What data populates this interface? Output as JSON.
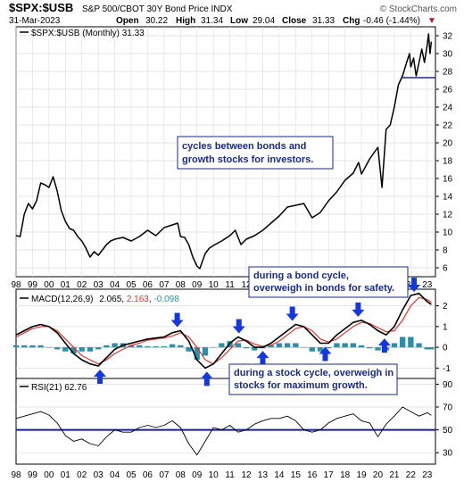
{
  "header": {
    "symbol": "$SPX:$USB",
    "name": "S&P 500/CBOT 30Y Bond Price INDX",
    "watermark": "© StockCharts.com",
    "date": "31-Mar-2023",
    "ohlc": {
      "open_label": "Open",
      "open": "30.22",
      "high_label": "High",
      "high": "31.34",
      "low_label": "Low",
      "low": "29.04",
      "close_label": "Close",
      "close": "31.33",
      "chg_label": "Chg",
      "chg": "-0.46 (-1.44%)",
      "chg_arrow": "▼"
    }
  },
  "colors": {
    "price": "#000000",
    "macd": "#000000",
    "signal": "#e8312a",
    "histogram": "#2a8fa8",
    "arrow": "#1437e0",
    "rsi": "#000000",
    "rsi_mid": "#1a1aa8",
    "ref_line": "#1a2a8c",
    "annotation_border": "#1a2a8c",
    "annotation_text": "#1a2a8c",
    "grid": "#dddddd"
  },
  "chart_data": [
    {
      "type": "line",
      "panel": "price",
      "legend": "$SPX:$USB (Monthly) 31.33",
      "y_ticks": [
        6,
        8,
        10,
        12,
        14,
        16,
        18,
        20,
        22,
        24,
        26,
        28,
        30,
        32
      ],
      "ylim": [
        5,
        33
      ],
      "x_tick_labels": [
        "98",
        "99",
        "00",
        "01",
        "02",
        "03",
        "04",
        "05",
        "06",
        "07",
        "08",
        "09",
        "10",
        "11",
        "12",
        "13",
        "14",
        "15",
        "16",
        "17",
        "18",
        "19",
        "20",
        "21",
        "22",
        "23"
      ],
      "xlim": [
        1998.0,
        2023.5
      ],
      "reference_line": 27.3,
      "series": [
        {
          "x": [
            1998.0,
            1998.25,
            1998.5,
            1998.75,
            1999.0,
            1999.25,
            1999.5,
            1999.75,
            2000.0,
            2000.25,
            2000.5,
            2000.75,
            2001.0,
            2001.25,
            2001.5,
            2001.75,
            2002.0,
            2002.25,
            2002.5,
            2002.75,
            2003.0,
            2003.25,
            2003.5,
            2003.75,
            2004.0,
            2004.5,
            2005.0,
            2005.5,
            2006.0,
            2006.5,
            2007.0,
            2007.5,
            2007.83,
            2008.0,
            2008.25,
            2008.5,
            2008.75,
            2009.0,
            2009.17,
            2009.5,
            2009.75,
            2010.0,
            2010.5,
            2011.0,
            2011.33,
            2011.67,
            2012.0,
            2012.5,
            2013.0,
            2013.5,
            2014.0,
            2014.5,
            2015.0,
            2015.5,
            2016.0,
            2016.5,
            2017.0,
            2017.5,
            2018.0,
            2018.5,
            2018.83,
            2019.0,
            2019.5,
            2020.0,
            2020.25,
            2020.5,
            2020.75,
            2021.0,
            2021.25,
            2021.5,
            2021.75,
            2021.92,
            2022.0,
            2022.17,
            2022.33,
            2022.5,
            2022.67,
            2022.83,
            2023.0,
            2023.08,
            2023.17,
            2023.25
          ],
          "values": [
            9.6,
            9.5,
            12.0,
            13.2,
            12.6,
            13.5,
            15.5,
            15.3,
            15.0,
            16.2,
            14.6,
            12.4,
            11.2,
            10.4,
            10.2,
            9.5,
            9.0,
            8.2,
            7.2,
            7.8,
            7.4,
            8.0,
            8.6,
            9.0,
            9.2,
            9.4,
            9.0,
            9.5,
            10.2,
            9.6,
            10.5,
            10.8,
            11.0,
            9.5,
            9.4,
            8.6,
            7.2,
            6.2,
            5.9,
            7.6,
            8.2,
            8.5,
            9.0,
            9.6,
            10.2,
            8.6,
            9.2,
            9.6,
            10.2,
            11.0,
            11.8,
            12.8,
            13.0,
            13.2,
            11.6,
            12.2,
            13.5,
            14.5,
            15.8,
            16.6,
            17.8,
            16.5,
            18.2,
            19.5,
            15.0,
            21.5,
            22.0,
            24.0,
            26.5,
            27.5,
            29.0,
            30.0,
            28.5,
            29.5,
            27.5,
            29.0,
            30.5,
            29.0,
            31.0,
            32.2,
            30.0,
            31.33
          ]
        }
      ]
    },
    {
      "type": "line",
      "panel": "macd",
      "legend_prefix": "MACD(12,26,9)",
      "legend_macd": "2.065",
      "legend_signal": "2.163",
      "legend_hist": "-0.098",
      "y_ticks": [
        -1,
        0,
        1,
        2
      ],
      "ylim": [
        -1.5,
        2.8
      ],
      "xlim": [
        1998.0,
        2023.5
      ],
      "x": [
        1998.0,
        1998.5,
        1999.0,
        1999.5,
        2000.0,
        2000.5,
        2001.0,
        2001.5,
        2002.0,
        2002.5,
        2003.0,
        2003.5,
        2004.0,
        2004.5,
        2005.0,
        2005.5,
        2006.0,
        2006.5,
        2007.0,
        2007.5,
        2008.0,
        2008.5,
        2009.0,
        2009.5,
        2010.0,
        2010.5,
        2011.0,
        2011.5,
        2012.0,
        2012.5,
        2013.0,
        2013.5,
        2014.0,
        2014.5,
        2015.0,
        2015.5,
        2016.0,
        2016.5,
        2017.0,
        2017.5,
        2018.0,
        2018.5,
        2019.0,
        2019.5,
        2020.0,
        2020.5,
        2021.0,
        2021.5,
        2022.0,
        2022.5,
        2023.0,
        2023.25
      ],
      "series": [
        {
          "name": "MACD",
          "values": [
            0.6,
            0.8,
            1.0,
            1.1,
            1.0,
            0.7,
            0.2,
            -0.3,
            -0.6,
            -0.8,
            -0.9,
            -0.5,
            -0.1,
            0.1,
            0.2,
            0.3,
            0.4,
            0.45,
            0.5,
            0.7,
            0.8,
            0.3,
            -0.6,
            -1.0,
            -0.8,
            -0.3,
            0.2,
            0.5,
            0.3,
            0.0,
            0.0,
            0.2,
            0.5,
            0.8,
            1.1,
            1.0,
            0.6,
            0.2,
            0.2,
            0.6,
            0.9,
            1.2,
            1.3,
            1.1,
            0.8,
            0.6,
            1.0,
            1.8,
            2.5,
            2.6,
            2.2,
            2.065
          ]
        },
        {
          "name": "Signal",
          "values": [
            0.5,
            0.7,
            0.9,
            1.0,
            1.0,
            0.8,
            0.4,
            0.0,
            -0.4,
            -0.6,
            -0.8,
            -0.6,
            -0.3,
            -0.1,
            0.1,
            0.2,
            0.35,
            0.4,
            0.45,
            0.55,
            0.7,
            0.5,
            0.0,
            -0.6,
            -0.8,
            -0.5,
            -0.1,
            0.3,
            0.35,
            0.15,
            0.05,
            0.1,
            0.3,
            0.6,
            0.9,
            1.0,
            0.8,
            0.4,
            0.25,
            0.4,
            0.7,
            1.0,
            1.2,
            1.15,
            0.95,
            0.75,
            0.8,
            1.3,
            2.0,
            2.4,
            2.3,
            2.163
          ]
        },
        {
          "name": "Histogram",
          "values": [
            0.1,
            0.1,
            0.1,
            0.1,
            0.0,
            -0.1,
            -0.2,
            -0.3,
            -0.2,
            -0.2,
            -0.1,
            0.1,
            0.2,
            0.2,
            0.1,
            0.1,
            0.05,
            0.05,
            0.05,
            0.15,
            0.1,
            -0.2,
            -0.6,
            -0.4,
            0.0,
            0.2,
            0.3,
            0.2,
            -0.05,
            -0.15,
            -0.05,
            0.1,
            0.2,
            0.2,
            0.2,
            0.0,
            -0.2,
            -0.2,
            -0.05,
            0.2,
            0.2,
            0.2,
            0.1,
            -0.05,
            -0.15,
            -0.15,
            0.2,
            0.5,
            0.5,
            0.2,
            -0.1,
            -0.098
          ]
        }
      ],
      "arrows_down": [
        2007.8,
        2011.55,
        2014.8,
        2018.8,
        2022.2
      ],
      "arrows_up": [
        2003.1,
        2009.6,
        2013.0,
        2016.8,
        2020.4
      ]
    },
    {
      "type": "line",
      "panel": "rsi",
      "legend": "RSI(21) 62.76",
      "y_ticks": [
        30,
        50,
        70,
        90
      ],
      "ylim": [
        20,
        95
      ],
      "xlim": [
        1998.0,
        2023.5
      ],
      "reference_line": 50,
      "x": [
        1998.0,
        1998.5,
        1999.0,
        1999.5,
        2000.0,
        2000.5,
        2001.0,
        2001.5,
        2002.0,
        2002.5,
        2003.0,
        2003.5,
        2004.0,
        2004.5,
        2005.0,
        2005.5,
        2006.0,
        2006.5,
        2007.0,
        2007.5,
        2008.0,
        2008.5,
        2009.0,
        2009.5,
        2010.0,
        2010.5,
        2011.0,
        2011.5,
        2012.0,
        2012.5,
        2013.0,
        2013.5,
        2014.0,
        2014.5,
        2015.0,
        2015.5,
        2016.0,
        2016.5,
        2017.0,
        2017.5,
        2018.0,
        2018.5,
        2019.0,
        2019.5,
        2020.0,
        2020.5,
        2021.0,
        2021.5,
        2022.0,
        2022.5,
        2023.0,
        2023.25
      ],
      "series": [
        {
          "name": "RSI",
          "values": [
            60,
            62,
            64,
            66,
            63,
            56,
            45,
            40,
            42,
            38,
            36,
            44,
            50,
            48,
            48,
            52,
            54,
            52,
            54,
            58,
            52,
            38,
            28,
            40,
            52,
            50,
            54,
            48,
            50,
            55,
            58,
            60,
            60,
            62,
            58,
            50,
            48,
            50,
            56,
            60,
            62,
            64,
            58,
            56,
            44,
            55,
            62,
            70,
            66,
            62,
            65,
            62.76
          ]
        }
      ]
    }
  ],
  "annotations": {
    "cycles": "cycles between bonds and growth stocks for investors.",
    "bond_cycle": "during a bond cycle, overweigh in bonds for safety.",
    "stock_cycle": "during a stock cycle, overweigh in stocks for maximum growth."
  }
}
